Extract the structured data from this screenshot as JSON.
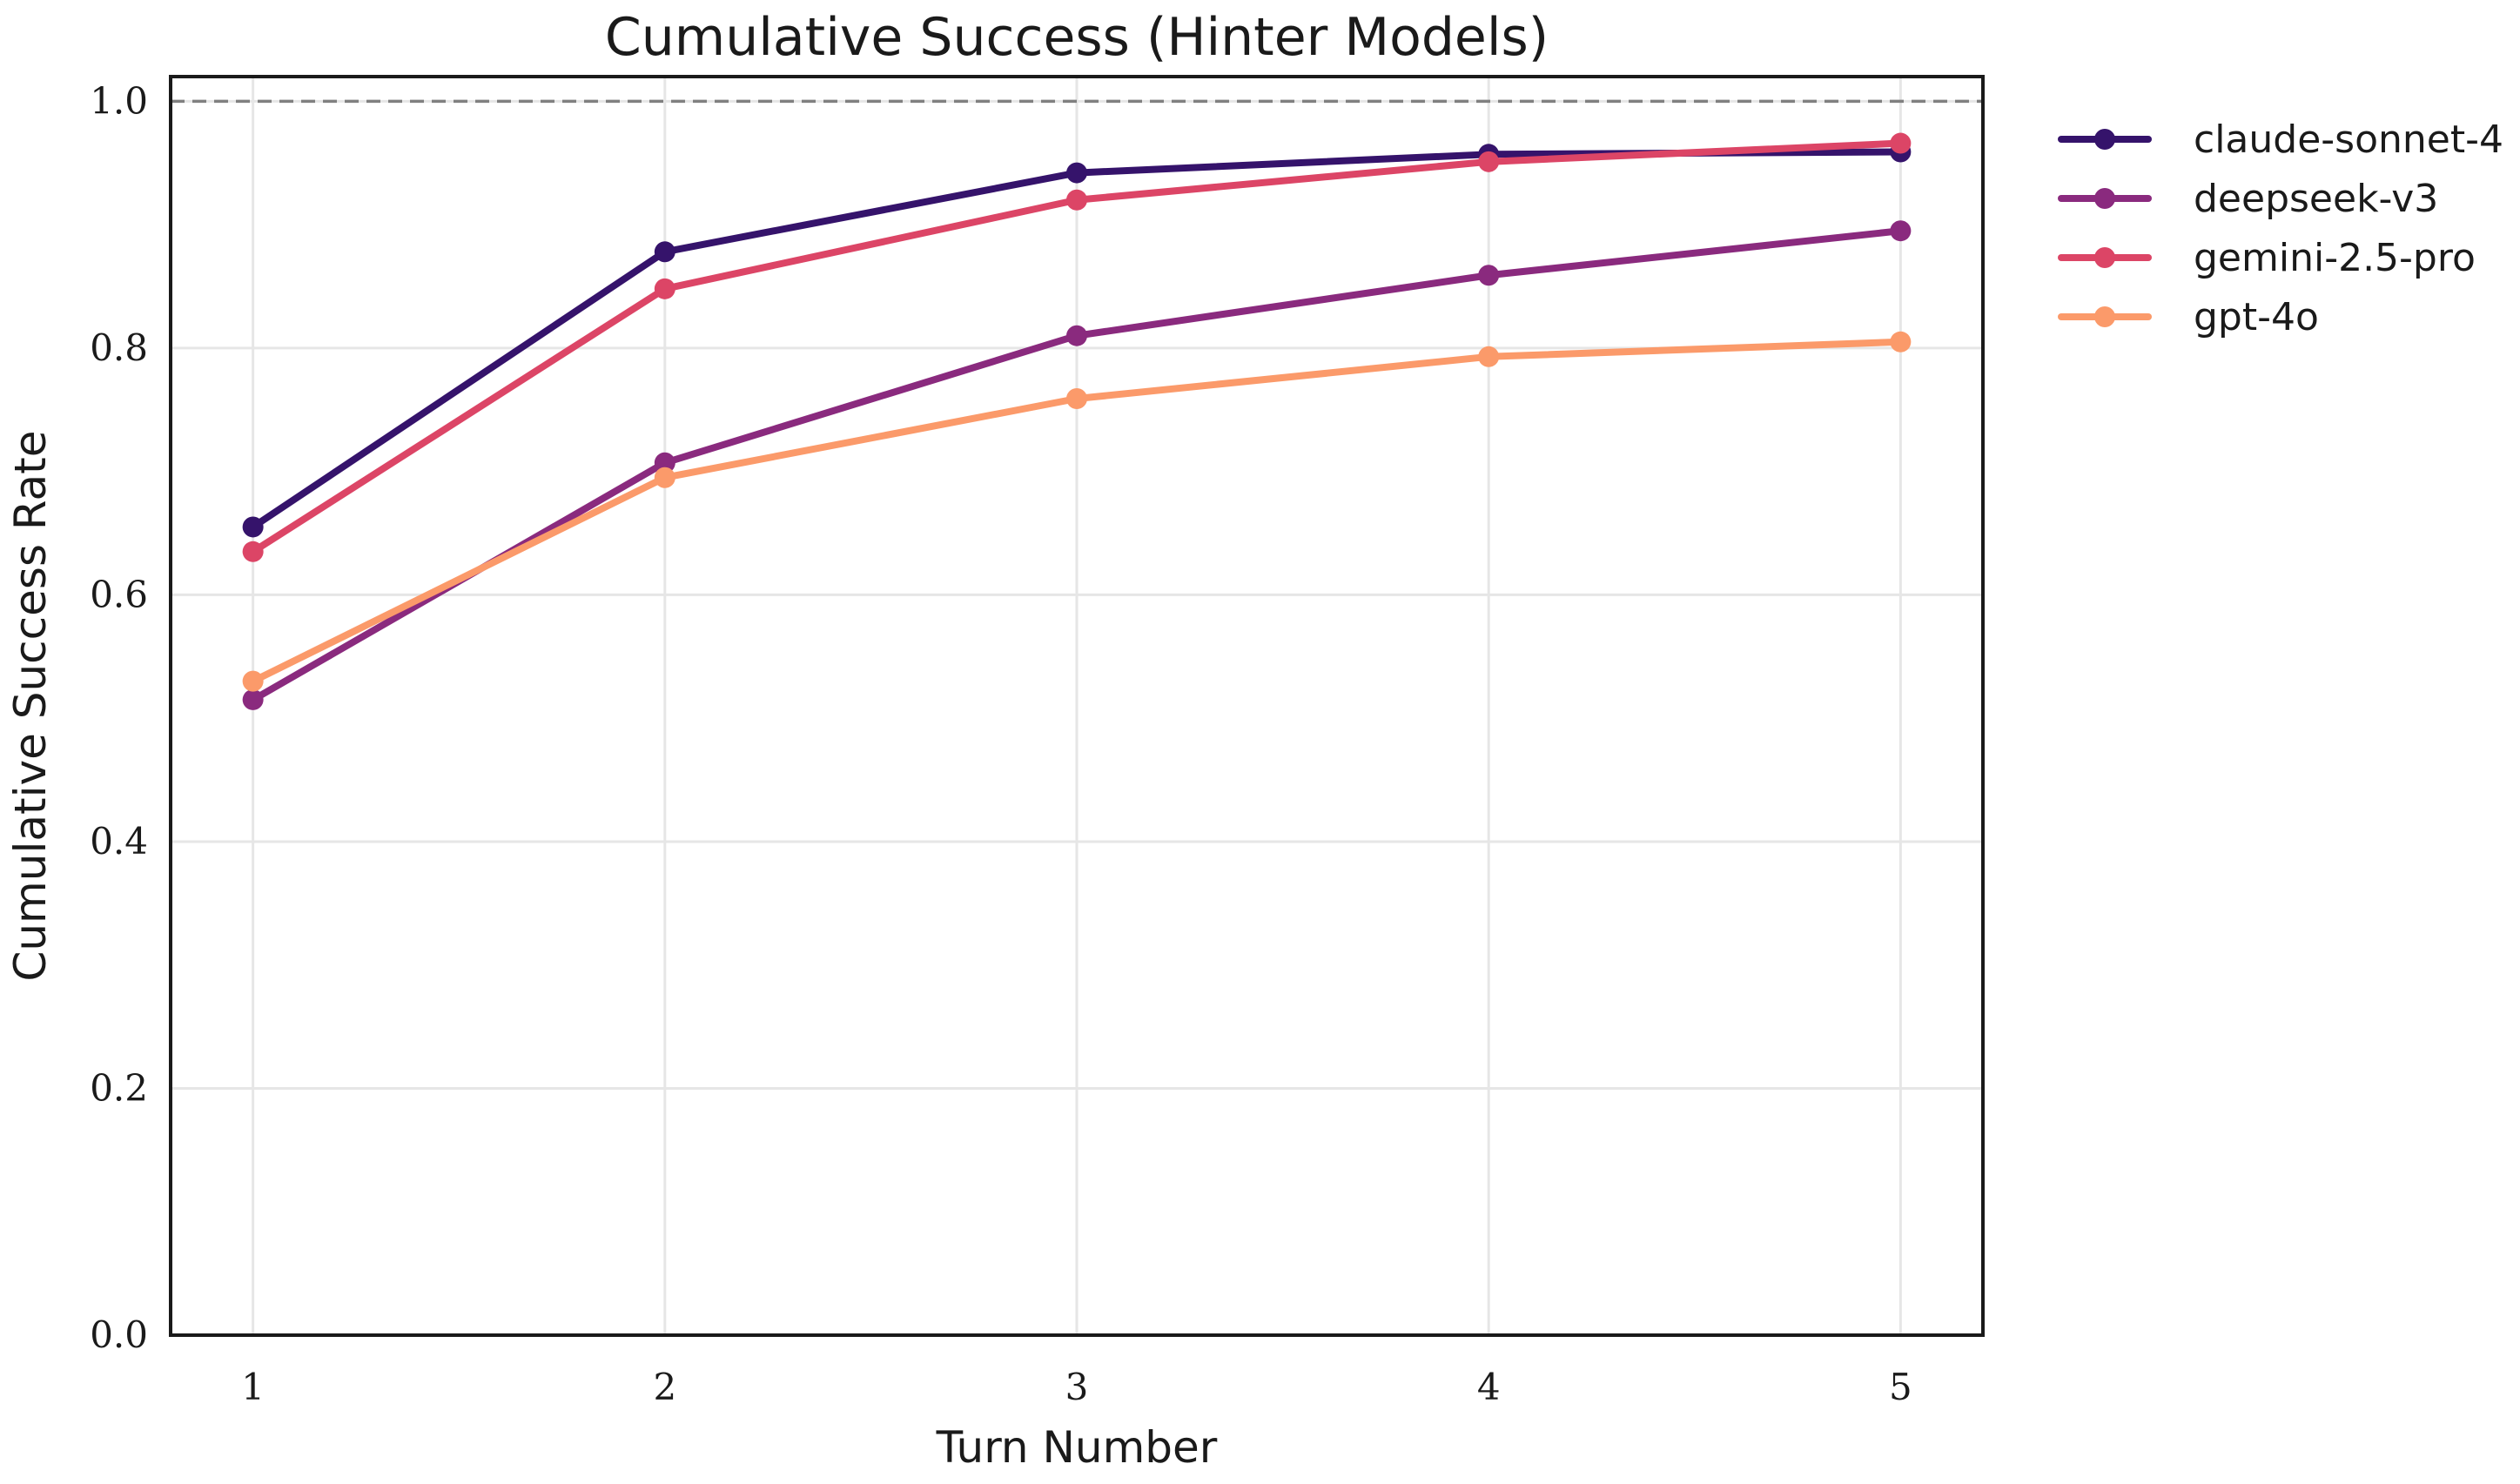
{
  "chart_data": {
    "type": "line",
    "title": "Cumulative Success (Hinter Models)",
    "xlabel": "Turn Number",
    "ylabel": "Cumulative Success Rate",
    "x": [
      1,
      2,
      3,
      4,
      5
    ],
    "xlim": [
      0.8,
      5.2
    ],
    "ylim": [
      0,
      1.02
    ],
    "x_ticks": [
      "1",
      "2",
      "3",
      "4",
      "5"
    ],
    "y_ticks": [
      "0.0",
      "0.2",
      "0.4",
      "0.6",
      "0.8",
      "1.0"
    ],
    "grid": true,
    "reference_line": {
      "y": 1.0,
      "style": "dashed",
      "color": "#808080"
    },
    "legend_position": "outside-right",
    "series": [
      {
        "name": "claude-sonnet-4",
        "color": "#35136b",
        "values": [
          0.655,
          0.878,
          0.942,
          0.957,
          0.959
        ]
      },
      {
        "name": "deepseek-v3",
        "color": "#8a2a7e",
        "values": [
          0.515,
          0.707,
          0.81,
          0.859,
          0.895
        ]
      },
      {
        "name": "gemini-2.5-pro",
        "color": "#dc4566",
        "values": [
          0.635,
          0.848,
          0.92,
          0.951,
          0.966
        ]
      },
      {
        "name": "gpt-4o",
        "color": "#fb9a6a",
        "values": [
          0.53,
          0.695,
          0.759,
          0.793,
          0.805
        ]
      }
    ]
  }
}
